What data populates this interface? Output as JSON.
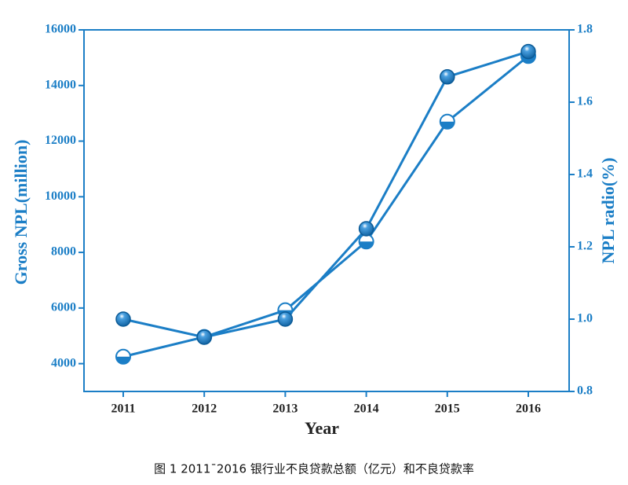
{
  "chart_data": {
    "type": "line",
    "categories": [
      "2011",
      "2012",
      "2013",
      "2014",
      "2015",
      "2016"
    ],
    "xlabel": "Year",
    "ylabel": "Gross NPL(million)",
    "y2label": "NPL radio(%)",
    "ylim": [
      3000,
      16000
    ],
    "yticks": [
      4000,
      6000,
      8000,
      10000,
      12000,
      14000,
      16000
    ],
    "y2lim": [
      0.8,
      1.8
    ],
    "y2ticks": [
      0.8,
      {
        "value": 1.0,
        "label": "1.0"
      },
      1.2,
      1.4,
      1.6,
      1.8
    ],
    "color": "#1b7ec6",
    "series": [
      {
        "color": "#1b7ec6",
        "marker": "half",
        "values": [
          4250,
          4960,
          5920,
          8390,
          12700,
          15060
        ]
      },
      {
        "color": "#1b7ec6",
        "marker": "full",
        "axis": "y2",
        "values": [
          1.0,
          0.95,
          1.0,
          1.25,
          1.67,
          1.74
        ]
      }
    ],
    "caption": "图 1 2011¯2016 银行业不良贷款总额（亿元）和不良贷款率"
  }
}
